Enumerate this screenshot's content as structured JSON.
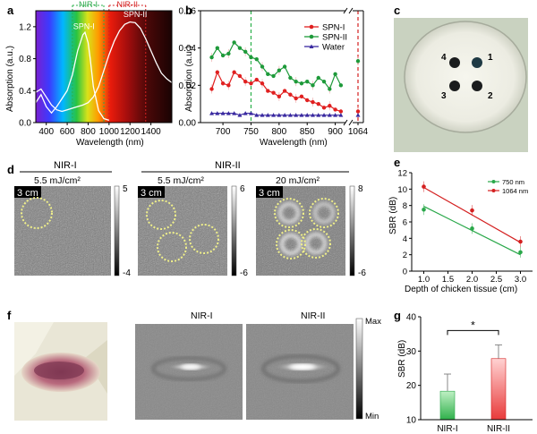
{
  "colors": {
    "spn1": "#e02020",
    "spn2": "#1e9a3a",
    "water": "#3a2aa0",
    "nir1": "#2aa84a",
    "nir2": "#d42020",
    "dash_green": "#2ab04a",
    "dash_red": "#d42020",
    "bar_green": "#6fd07a",
    "bar_red": "#f07b7b",
    "dot": "#f0f08a"
  },
  "panel_labels": {
    "a": "a",
    "b": "b",
    "c": "c",
    "d": "d",
    "e": "e",
    "f": "f",
    "g": "g"
  },
  "chart_data": [
    {
      "id": "a",
      "type": "line",
      "xlabel": "Wavelength  (nm)",
      "ylabel": "Absorption (a.u.)",
      "xlim": [
        300,
        1600
      ],
      "ylim": [
        0,
        1.4
      ],
      "xticks": [
        "400",
        "600",
        "800",
        "1000",
        "1200",
        "1400"
      ],
      "yticks": [
        "0.0",
        "0.4",
        "0.8",
        "1.2"
      ],
      "region_labels": {
        "nir1": "NIR-I",
        "nir2": "NIR-II"
      },
      "nir1_range": [
        650,
        950
      ],
      "nir2_range": [
        1000,
        1350
      ],
      "series": [
        {
          "name": "SPN-I",
          "x": [
            300,
            350,
            400,
            450,
            500,
            550,
            600,
            650,
            700,
            750,
            770,
            800,
            820,
            850,
            900,
            950,
            1000
          ],
          "values": [
            0.25,
            0.35,
            0.2,
            0.12,
            0.2,
            0.3,
            0.4,
            0.6,
            0.9,
            1.1,
            1.13,
            1.0,
            0.8,
            0.45,
            0.15,
            0.05,
            0.03
          ]
        },
        {
          "name": "SPN-II",
          "x": [
            300,
            350,
            400,
            450,
            500,
            550,
            600,
            650,
            700,
            750,
            800,
            850,
            900,
            950,
            1000,
            1050,
            1100,
            1150,
            1200,
            1250,
            1300,
            1350,
            1400,
            1450,
            1500,
            1550,
            1600
          ],
          "values": [
            0.38,
            0.42,
            0.32,
            0.22,
            0.16,
            0.14,
            0.16,
            0.18,
            0.2,
            0.22,
            0.25,
            0.32,
            0.45,
            0.65,
            0.85,
            1.02,
            1.15,
            1.23,
            1.26,
            1.25,
            1.18,
            1.05,
            0.9,
            0.75,
            0.62,
            0.55,
            0.5
          ]
        }
      ]
    },
    {
      "id": "b",
      "type": "line",
      "xlabel": "Wavelength  (nm)",
      "ylabel": "Absorption (a.u.)",
      "xlim": [
        660,
        1070
      ],
      "ylim": [
        0,
        0.06
      ],
      "xticks": [
        "700",
        "750",
        "800",
        "850",
        "900",
        "1064"
      ],
      "yticks": [
        "0.00",
        "0.02",
        "0.04",
        "0.06"
      ],
      "markers": [
        750,
        1064
      ],
      "series": [
        {
          "name": "SPN-I",
          "x": [
            680,
            690,
            700,
            710,
            720,
            730,
            740,
            750,
            760,
            770,
            780,
            790,
            800,
            810,
            820,
            830,
            840,
            850,
            860,
            870,
            880,
            890,
            900,
            910,
            1064
          ],
          "values": [
            0.018,
            0.027,
            0.021,
            0.02,
            0.027,
            0.025,
            0.022,
            0.021,
            0.023,
            0.021,
            0.017,
            0.016,
            0.014,
            0.017,
            0.015,
            0.013,
            0.014,
            0.012,
            0.011,
            0.01,
            0.008,
            0.009,
            0.007,
            0.006,
            0.006
          ]
        },
        {
          "name": "SPN-II",
          "x": [
            680,
            690,
            700,
            710,
            720,
            730,
            740,
            750,
            760,
            770,
            780,
            790,
            800,
            810,
            820,
            830,
            840,
            850,
            860,
            870,
            880,
            890,
            900,
            910,
            1064
          ],
          "values": [
            0.035,
            0.04,
            0.036,
            0.037,
            0.043,
            0.04,
            0.038,
            0.035,
            0.034,
            0.03,
            0.026,
            0.025,
            0.028,
            0.03,
            0.024,
            0.022,
            0.021,
            0.022,
            0.02,
            0.024,
            0.022,
            0.018,
            0.026,
            0.02,
            0.033
          ]
        },
        {
          "name": "Water",
          "x": [
            680,
            690,
            700,
            710,
            720,
            730,
            740,
            750,
            760,
            770,
            780,
            790,
            800,
            810,
            820,
            830,
            840,
            850,
            860,
            870,
            880,
            890,
            900,
            910,
            1064
          ],
          "values": [
            0.005,
            0.005,
            0.005,
            0.005,
            0.005,
            0.004,
            0.005,
            0.005,
            0.004,
            0.004,
            0.004,
            0.004,
            0.004,
            0.004,
            0.004,
            0.004,
            0.004,
            0.004,
            0.004,
            0.004,
            0.004,
            0.004,
            0.004,
            0.004,
            0.004
          ]
        }
      ]
    },
    {
      "id": "e",
      "type": "scatter",
      "xlabel": "Depth of chicken tissue (cm)",
      "ylabel": "SBR (dB)",
      "xlim": [
        0.75,
        3.25
      ],
      "ylim": [
        0,
        12
      ],
      "xticks": [
        "1.0",
        "1.5",
        "2.0",
        "2.5",
        "3.0"
      ],
      "yticks": [
        "0",
        "2",
        "4",
        "6",
        "8",
        "10",
        "12"
      ],
      "series": [
        {
          "name": "750 nm",
          "x": [
            1,
            2,
            3
          ],
          "values": [
            7.5,
            5.2,
            2.3
          ],
          "fit": [
            7.9,
            2.0
          ]
        },
        {
          "name": "1064 nm",
          "x": [
            1,
            2,
            3
          ],
          "values": [
            10.3,
            7.4,
            3.6
          ],
          "fit": [
            10.2,
            3.5
          ]
        }
      ]
    },
    {
      "id": "g",
      "type": "bar",
      "ylabel": "SBR (dB)",
      "ylim": [
        10,
        40
      ],
      "yticks": [
        "10",
        "20",
        "30",
        "40"
      ],
      "categories": [
        "NIR-I",
        "NIR-II"
      ],
      "values": [
        18.3,
        27.8
      ],
      "errors": [
        5.0,
        4.0
      ],
      "significance": "*"
    }
  ],
  "panel_c": {
    "wells": [
      "1",
      "2",
      "3",
      "4"
    ]
  },
  "panel_d": {
    "groups": [
      "NIR-I",
      "NIR-II"
    ],
    "fluences": [
      "5.5 mJ/cm²",
      "5.5 mJ/cm²",
      "20 mJ/cm²"
    ],
    "scale_label": "3 cm",
    "colorbars": [
      {
        "max": "5",
        "min": "-4"
      },
      {
        "max": "6",
        "min": "-6"
      },
      {
        "max": "8",
        "min": "-6"
      }
    ]
  },
  "panel_f": {
    "titles": [
      "NIR-I",
      "NIR-II"
    ],
    "colorbar": {
      "max": "Max",
      "min": "Min"
    }
  }
}
